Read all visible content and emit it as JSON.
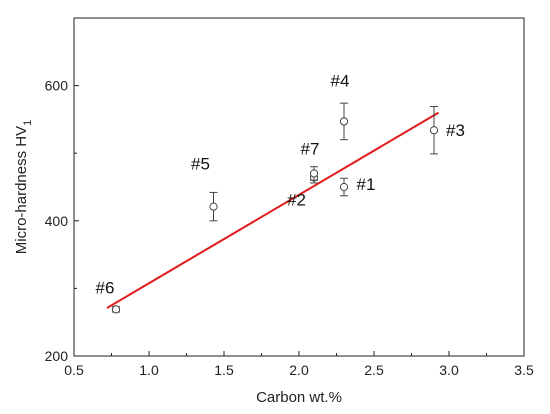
{
  "chart_data": {
    "type": "scatter",
    "xlabel": "Carbon wt.%",
    "ylabel": "Micro-hardness HV",
    "ylabel_subscript": "1",
    "xlim": [
      0.5,
      3.5
    ],
    "ylim": [
      200,
      700
    ],
    "x_ticks": [
      0.5,
      1.0,
      1.5,
      2.0,
      2.5,
      3.0,
      3.5
    ],
    "x_tick_labels": [
      "0.5",
      "1.0",
      "1.5",
      "2.0",
      "2.5",
      "3.0",
      "3.5"
    ],
    "y_ticks": [
      200,
      400,
      600
    ],
    "y_tick_labels": [
      "200",
      "400",
      "600"
    ],
    "grid": false,
    "points": [
      {
        "label": "#1",
        "x": 2.3,
        "y": 450,
        "err": 13
      },
      {
        "label": "#2",
        "x": 2.1,
        "y": 464,
        "err": 8
      },
      {
        "label": "#3",
        "x": 2.9,
        "y": 534,
        "err": 35
      },
      {
        "label": "#4",
        "x": 2.3,
        "y": 547,
        "err": 27
      },
      {
        "label": "#5",
        "x": 1.43,
        "y": 421,
        "err": 21
      },
      {
        "label": "#6",
        "x": 0.78,
        "y": 269,
        "err": 4
      },
      {
        "label": "#7",
        "x": 2.1,
        "y": 470,
        "err": 10
      }
    ],
    "fit_line": {
      "x": [
        0.72,
        2.93
      ],
      "y": [
        271,
        560
      ],
      "color": "#e31a1c"
    },
    "marker_color": "#444444"
  }
}
